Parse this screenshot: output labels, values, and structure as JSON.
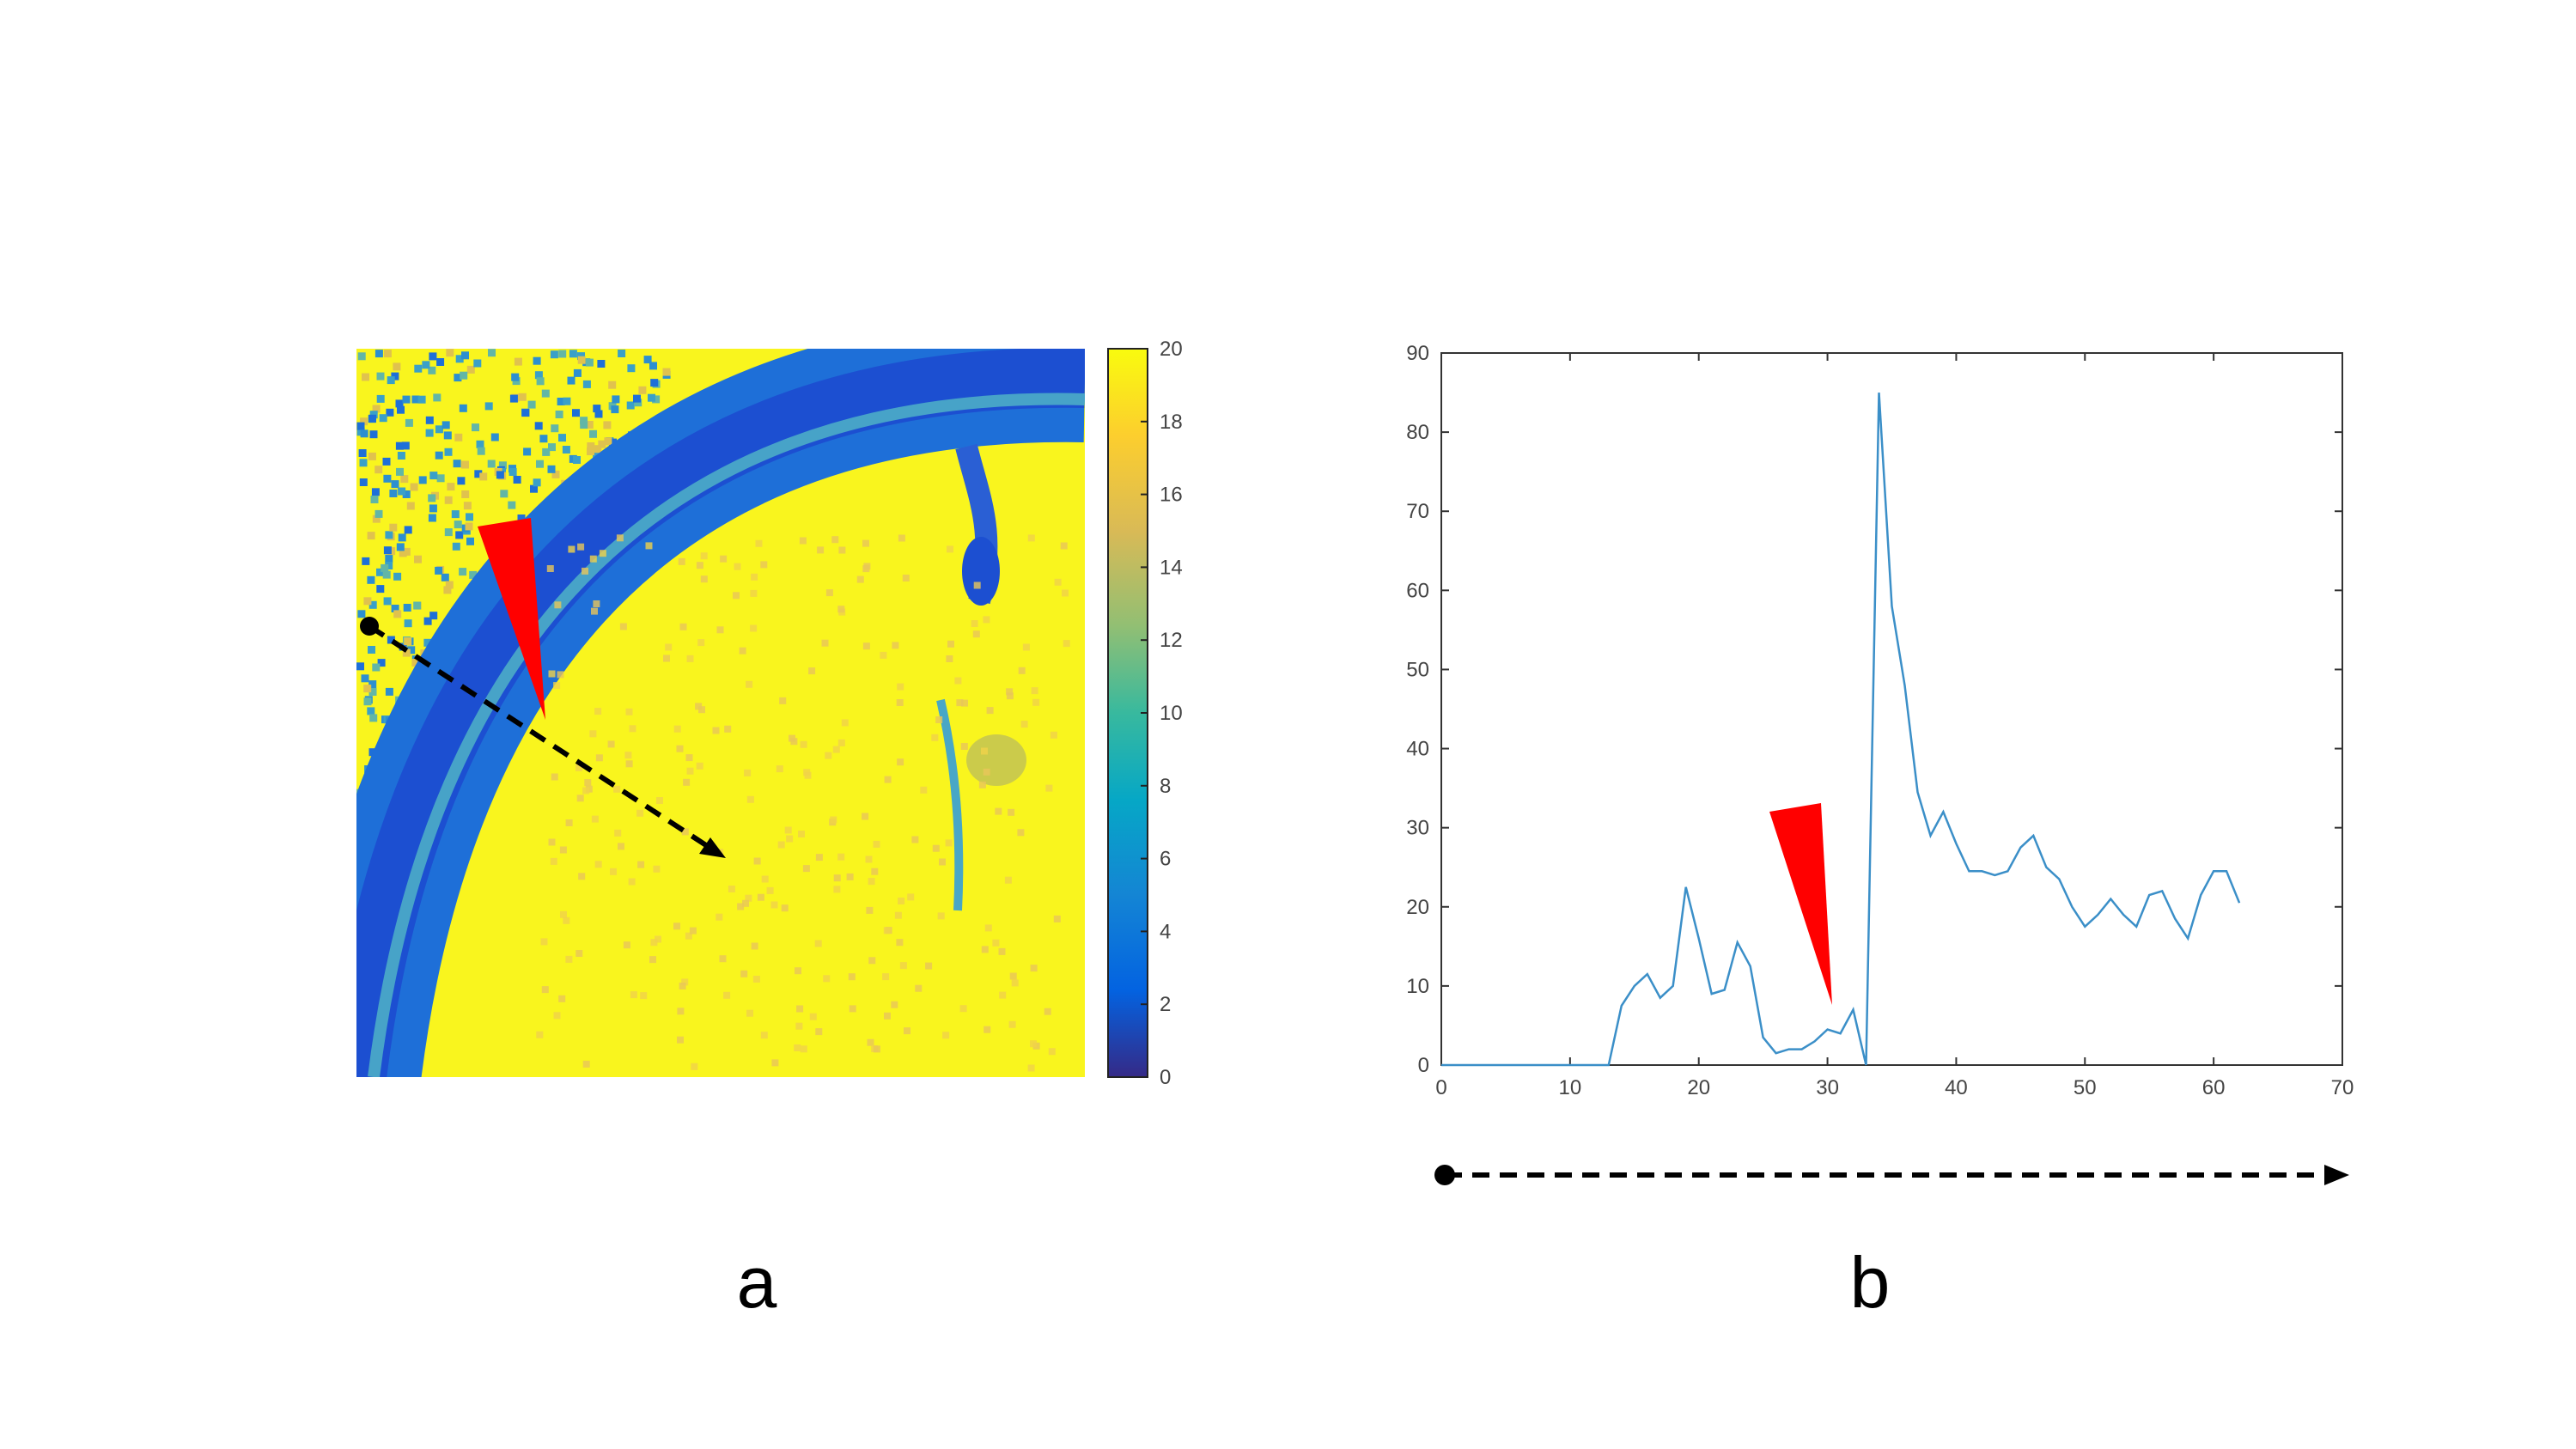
{
  "colors": {
    "line": "#3b8fc8",
    "arrowhead_marker": "#ff0000",
    "path_arrow": "#000000",
    "axes": "#333333"
  },
  "panel_labels": {
    "a": "a",
    "b": "b"
  },
  "chart_data": [
    {
      "type": "heatmap",
      "panel": "a",
      "colormap": "parula",
      "colorbar": {
        "min": 0,
        "max": 20,
        "ticks": [
          "0",
          "2",
          "4",
          "6",
          "8",
          "10",
          "12",
          "14",
          "16",
          "18",
          "20"
        ]
      },
      "annotations": [
        "red arrowhead marker",
        "dashed black line-profile arrow"
      ]
    },
    {
      "type": "line",
      "panel": "b",
      "xlim": [
        0,
        70
      ],
      "ylim": [
        0,
        90
      ],
      "xticks": [
        "0",
        "10",
        "20",
        "30",
        "40",
        "50",
        "60",
        "70"
      ],
      "yticks": [
        "0",
        "10",
        "20",
        "30",
        "40",
        "50",
        "60",
        "70",
        "80",
        "90"
      ],
      "grid": false,
      "series": [
        {
          "x": [
            0,
            1,
            2,
            3,
            4,
            5,
            6,
            7,
            8,
            9,
            10,
            11,
            12,
            13,
            14,
            15,
            16,
            17,
            18,
            19,
            20,
            21,
            22,
            23,
            24,
            25,
            26,
            27,
            28,
            29,
            30,
            31,
            32,
            33,
            34,
            35,
            36,
            37,
            38,
            39,
            40,
            41,
            42,
            43,
            44,
            45,
            46,
            47,
            48,
            49,
            50,
            51,
            52,
            53,
            54,
            55,
            56,
            57,
            58,
            59,
            60,
            61,
            62
          ],
          "values": [
            0,
            0,
            0,
            0,
            0,
            0,
            0,
            0,
            0,
            0,
            0,
            0,
            0,
            0,
            7.5,
            10,
            11.5,
            8.5,
            10,
            22.5,
            16,
            9,
            9.5,
            15.5,
            12.5,
            3.5,
            1.5,
            2,
            2,
            3,
            4.5,
            4,
            7,
            0,
            85,
            58,
            48,
            34.5,
            29,
            32,
            28,
            24.5,
            24.5,
            24,
            24.5,
            27.5,
            29,
            25,
            23.5,
            20,
            17.5,
            19,
            21,
            19,
            17.5,
            21.5,
            22,
            18.5,
            16,
            21.5,
            24.5,
            24.5,
            20.5
          ]
        }
      ],
      "annotations": [
        "red arrowhead marker near x=30",
        "dashed black profile direction arrow below x-axis"
      ]
    }
  ]
}
